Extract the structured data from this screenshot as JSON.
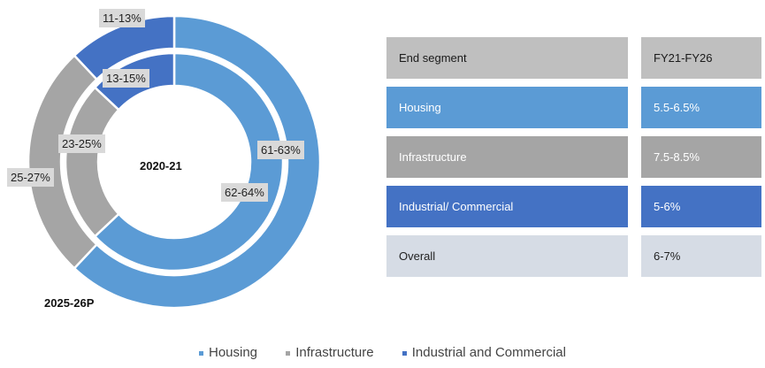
{
  "chart_data": {
    "type": "pie",
    "variant": "double-donut",
    "legend_position": "bottom",
    "categories": [
      "Housing",
      "Infrastructure",
      "Industrial and Commercial"
    ],
    "colors": [
      "#5b9bd5",
      "#a5a5a5",
      "#4472c4"
    ],
    "rings": [
      {
        "name": "2020-21",
        "position": "inner",
        "values": [
          63,
          24,
          13
        ],
        "labels": [
          "62-64%",
          "23-25%",
          "13-15%"
        ]
      },
      {
        "name": "2025-26P",
        "position": "outer",
        "values": [
          62,
          26,
          12
        ],
        "labels": [
          "61-63%",
          "25-27%",
          "11-13%"
        ]
      }
    ]
  },
  "table": {
    "header": {
      "segment": "End segment",
      "value": "FY21-FY26"
    },
    "rows": [
      {
        "segment": "Housing",
        "value": "5.5-6.5%",
        "color": "#5b9bd5",
        "value_color": "#5b9bd5",
        "text_color": "#ffffff"
      },
      {
        "segment": "Infrastructure",
        "value": "7.5-8.5%",
        "color": "#a5a5a5",
        "value_color": "#a5a5a5",
        "text_color": "#ffffff"
      },
      {
        "segment": "Industrial/ Commercial",
        "value": "5-6%",
        "color": "#4472c4",
        "value_color": "#4472c4",
        "text_color": "#ffffff"
      },
      {
        "segment": "Overall",
        "value": "6-7%",
        "color": "#d6dce5",
        "value_color": "#d6dce5",
        "text_color": "#222222"
      }
    ],
    "header_color": "#bfbfbf"
  },
  "legend": {
    "items": [
      {
        "label": "Housing",
        "color": "#5b9bd5"
      },
      {
        "label": "Infrastructure",
        "color": "#a5a5a5"
      },
      {
        "label": "Industrial and Commercial",
        "color": "#4472c4"
      }
    ]
  }
}
